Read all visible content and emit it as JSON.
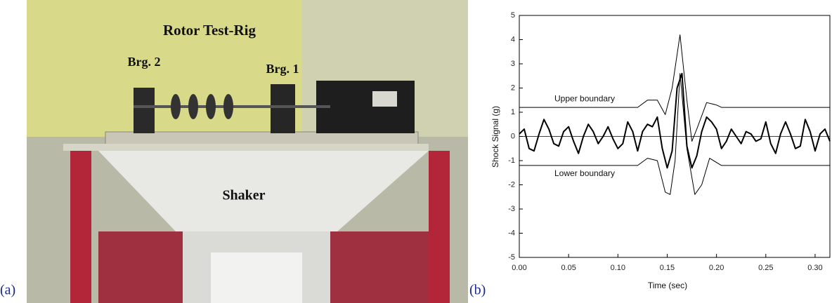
{
  "panel_a": {
    "label": "(a)",
    "annotations": [
      "Rotor Test-Rig",
      "Brg. 2",
      "Brg. 1",
      "Shaker"
    ]
  },
  "panel_b": {
    "label": "(b)"
  },
  "chart_data": {
    "type": "line",
    "xlabel": "Time (sec)",
    "ylabel": "Shock Signal (g)",
    "xlim": [
      0,
      0.315
    ],
    "ylim": [
      -5,
      5
    ],
    "xticks": [
      {
        "value": 0,
        "label": "0.00"
      },
      0.05,
      {
        "value": 0.1,
        "label": "0.10"
      },
      0.15,
      {
        "value": 0.2,
        "label": "0.20"
      },
      0.25,
      {
        "value": 0.3,
        "label": "0.30"
      }
    ],
    "yticks": [
      -5,
      -4,
      -3,
      -2,
      -1,
      0,
      1,
      2,
      3,
      4,
      5
    ],
    "zero_line": true,
    "series": [
      {
        "name": "Upper boundary",
        "color": "#000000",
        "x": [
          0,
          0.12,
          0.13,
          0.14,
          0.148,
          0.155,
          0.163,
          0.17,
          0.175,
          0.18,
          0.19,
          0.2,
          0.205,
          0.315
        ],
        "values": [
          1.2,
          1.2,
          1.5,
          1.5,
          0.9,
          2.0,
          4.2,
          1.5,
          -0.2,
          0.3,
          1.4,
          1.3,
          1.2,
          1.2
        ]
      },
      {
        "name": "Lower boundary",
        "color": "#000000",
        "x": [
          0,
          0.12,
          0.13,
          0.14,
          0.148,
          0.153,
          0.158,
          0.163,
          0.17,
          0.178,
          0.185,
          0.193,
          0.205,
          0.315
        ],
        "values": [
          -1.2,
          -1.2,
          -0.9,
          -1.0,
          -2.3,
          -2.4,
          -1.0,
          2.6,
          -0.5,
          -2.4,
          -2.0,
          -0.9,
          -1.2,
          -1.2
        ]
      },
      {
        "color": "#000000",
        "x": [
          0,
          0.005,
          0.01,
          0.015,
          0.02,
          0.025,
          0.03,
          0.035,
          0.04,
          0.045,
          0.05,
          0.055,
          0.06,
          0.065,
          0.07,
          0.075,
          0.08,
          0.085,
          0.09,
          0.095,
          0.1,
          0.105,
          0.11,
          0.115,
          0.12,
          0.125,
          0.13,
          0.135,
          0.14,
          0.145,
          0.15,
          0.155,
          0.16,
          0.165,
          0.17,
          0.175,
          0.18,
          0.185,
          0.19,
          0.195,
          0.2,
          0.205,
          0.21,
          0.215,
          0.22,
          0.225,
          0.23,
          0.235,
          0.24,
          0.245,
          0.25,
          0.255,
          0.26,
          0.265,
          0.27,
          0.275,
          0.28,
          0.285,
          0.29,
          0.295,
          0.3,
          0.305,
          0.31,
          0.315
        ],
        "values": [
          0.1,
          0.3,
          -0.5,
          -0.6,
          0.1,
          0.7,
          0.3,
          -0.3,
          -0.4,
          0.2,
          0.4,
          -0.2,
          -0.7,
          0.0,
          0.5,
          0.2,
          -0.3,
          0.0,
          0.4,
          -0.1,
          -0.5,
          -0.3,
          0.6,
          0.2,
          -0.6,
          0.2,
          0.5,
          0.4,
          0.8,
          -0.5,
          -1.3,
          -0.6,
          2.0,
          2.6,
          -0.4,
          -1.3,
          -0.8,
          0.2,
          0.8,
          0.6,
          0.3,
          -0.5,
          -0.2,
          0.3,
          0.0,
          -0.3,
          0.2,
          0.1,
          -0.2,
          -0.1,
          0.6,
          -0.3,
          -0.7,
          0.1,
          0.6,
          0.1,
          -0.5,
          -0.4,
          0.7,
          0.2,
          -0.6,
          0.1,
          0.3,
          -0.2
        ]
      }
    ]
  }
}
